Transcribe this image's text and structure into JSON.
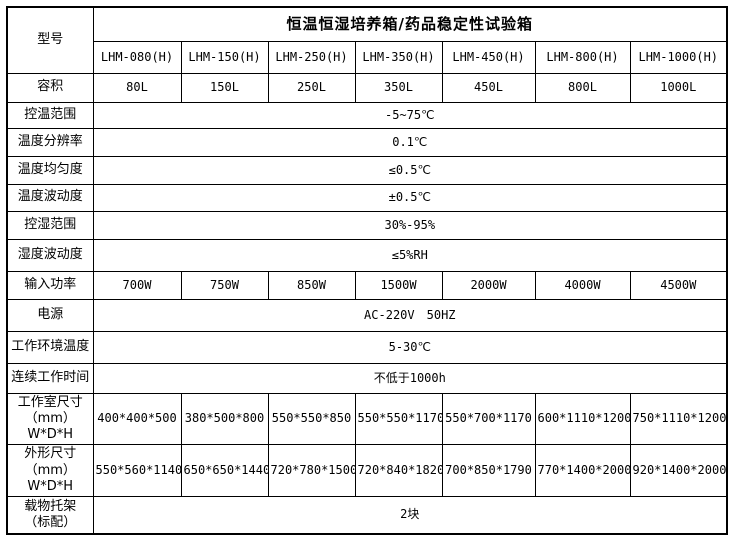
{
  "window": {
    "background": "#ffffff",
    "border_color": "#000000",
    "text_color": "#000000"
  },
  "table": {
    "rows": [
      {
        "cells": [
          {
            "name": "row-label-model",
            "text": "型号",
            "rowspan": 2,
            "cls": "label"
          },
          {
            "name": "table-title",
            "text": "恒温恒湿培养箱/药品稳定性试验箱",
            "colspan": 7,
            "cls": "title"
          }
        ]
      },
      {
        "cells": [
          {
            "name": "model-column-header",
            "text": "LHM-080(H)",
            "cls": "value"
          },
          {
            "name": "model-column-header",
            "text": "LHM-150(H)",
            "cls": "value"
          },
          {
            "name": "model-column-header",
            "text": "LHM-250(H)",
            "cls": "value"
          },
          {
            "name": "model-column-header",
            "text": "LHM-350(H)",
            "cls": "value"
          },
          {
            "name": "model-column-header",
            "text": "LHM-450(H)",
            "cls": "value"
          },
          {
            "name": "model-column-header",
            "text": "LHM-800(H)",
            "cls": "value"
          },
          {
            "name": "model-column-header",
            "text": "LHM-1000(H)",
            "cls": "value"
          }
        ]
      },
      {
        "cells": [
          {
            "name": "row-label",
            "text": "容积",
            "cls": "label"
          },
          {
            "name": "spec-cell",
            "text": "80L",
            "cls": "value"
          },
          {
            "name": "spec-cell",
            "text": "150L",
            "cls": "value"
          },
          {
            "name": "spec-cell",
            "text": "250L",
            "cls": "value"
          },
          {
            "name": "spec-cell",
            "text": "350L",
            "cls": "value"
          },
          {
            "name": "spec-cell",
            "text": "450L",
            "cls": "value"
          },
          {
            "name": "spec-cell",
            "text": "800L",
            "cls": "value"
          },
          {
            "name": "spec-cell",
            "text": "1000L",
            "cls": "value"
          }
        ]
      },
      {
        "cells": [
          {
            "name": "row-label",
            "text": "控温范围",
            "cls": "label"
          },
          {
            "name": "spec-cell-merged",
            "text": "-5~75℃",
            "colspan": 7,
            "cls": "value"
          }
        ]
      },
      {
        "cells": [
          {
            "name": "row-label",
            "text": "温度分辨率",
            "cls": "label"
          },
          {
            "name": "spec-cell-merged",
            "text": "0.1℃",
            "colspan": 7,
            "cls": "value"
          }
        ]
      },
      {
        "cells": [
          {
            "name": "row-label",
            "text": "温度均匀度",
            "cls": "label"
          },
          {
            "name": "spec-cell-merged",
            "text": "≤0.5℃",
            "colspan": 7,
            "cls": "value"
          }
        ]
      },
      {
        "cells": [
          {
            "name": "row-label",
            "text": "温度波动度",
            "cls": "label"
          },
          {
            "name": "spec-cell-merged",
            "text": "±0.5℃",
            "colspan": 7,
            "cls": "value"
          }
        ]
      },
      {
        "cells": [
          {
            "name": "row-label",
            "text": "控湿范围",
            "cls": "label"
          },
          {
            "name": "spec-cell-merged",
            "text": "30%-95%",
            "colspan": 7,
            "cls": "value"
          }
        ]
      },
      {
        "cells": [
          {
            "name": "row-label",
            "text": "湿度波动度",
            "cls": "label"
          },
          {
            "name": "spec-cell-merged",
            "text": "≤5%RH",
            "colspan": 7,
            "cls": "value"
          }
        ]
      },
      {
        "cells": [
          {
            "name": "row-label",
            "text": "输入功率",
            "cls": "label"
          },
          {
            "name": "spec-cell",
            "text": "700W",
            "cls": "value"
          },
          {
            "name": "spec-cell",
            "text": "750W",
            "cls": "value"
          },
          {
            "name": "spec-cell",
            "text": "850W",
            "cls": "value"
          },
          {
            "name": "spec-cell",
            "text": "1500W",
            "cls": "value"
          },
          {
            "name": "spec-cell",
            "text": "2000W",
            "cls": "value"
          },
          {
            "name": "spec-cell",
            "text": "4000W",
            "cls": "value"
          },
          {
            "name": "spec-cell",
            "text": "4500W",
            "cls": "value"
          }
        ]
      },
      {
        "cells": [
          {
            "name": "row-label",
            "text": "电源",
            "cls": "label"
          },
          {
            "name": "spec-cell-merged",
            "text": "AC-220V　50HZ",
            "colspan": 7,
            "cls": "value"
          }
        ]
      },
      {
        "cells": [
          {
            "name": "row-label",
            "text": "工作环境温度",
            "cls": "label"
          },
          {
            "name": "spec-cell-merged",
            "text": "5-30℃",
            "colspan": 7,
            "cls": "value"
          }
        ]
      },
      {
        "cells": [
          {
            "name": "row-label",
            "text": "连续工作时间",
            "cls": "label"
          },
          {
            "name": "spec-cell-merged",
            "text": "不低于1000h",
            "colspan": 7,
            "cls": "value"
          }
        ]
      },
      {
        "cells": [
          {
            "name": "row-label",
            "lines": [
              "工作室尺寸",
              "（mm）W*D*H"
            ],
            "cls": "label"
          },
          {
            "name": "spec-cell",
            "text": "400*400*500",
            "cls": "value"
          },
          {
            "name": "spec-cell",
            "text": "380*500*800",
            "cls": "value"
          },
          {
            "name": "spec-cell",
            "text": "550*550*850",
            "cls": "value"
          },
          {
            "name": "spec-cell",
            "text": "550*550*1170",
            "cls": "value"
          },
          {
            "name": "spec-cell",
            "text": "550*700*1170",
            "cls": "value"
          },
          {
            "name": "spec-cell",
            "text": "600*1110*1200",
            "cls": "value"
          },
          {
            "name": "spec-cell",
            "text": "750*1110*1200",
            "cls": "value"
          }
        ]
      },
      {
        "cells": [
          {
            "name": "row-label",
            "lines": [
              "外形尺寸",
              "（mm）W*D*H"
            ],
            "cls": "label"
          },
          {
            "name": "spec-cell",
            "text": "550*560*1140",
            "cls": "value"
          },
          {
            "name": "spec-cell",
            "text": "650*650*1440",
            "cls": "value"
          },
          {
            "name": "spec-cell",
            "text": "720*780*1500",
            "cls": "value"
          },
          {
            "name": "spec-cell",
            "text": "720*840*1820",
            "cls": "value"
          },
          {
            "name": "spec-cell",
            "text": "700*850*1790",
            "cls": "value"
          },
          {
            "name": "spec-cell",
            "text": "770*1400*2000",
            "cls": "value"
          },
          {
            "name": "spec-cell",
            "text": "920*1400*2000",
            "cls": "value"
          }
        ]
      },
      {
        "cells": [
          {
            "name": "row-label",
            "lines": [
              "载物托架",
              "（标配）"
            ],
            "cls": "label"
          },
          {
            "name": "spec-cell-merged",
            "text": "2块",
            "colspan": 7,
            "cls": "value"
          }
        ]
      }
    ]
  }
}
